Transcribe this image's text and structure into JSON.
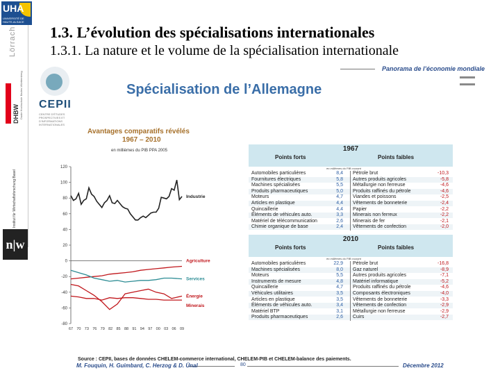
{
  "sidebar": {
    "uha_logo_text": "UHA",
    "uha_caption": "UNIVERSITÉ DE HAUTE-ALSACE",
    "campus_name": "Lörrach",
    "dhbw_name": "DHBW",
    "dhbw_sub": "Duale Hochschule Baden-Württemberg",
    "institute_name": "Institut für Wirtschaftsforschung Basel",
    "nw_logo": "n|w"
  },
  "slide": {
    "title": "1.3. L’évolution des spécialisations internationales",
    "subtitle": "1.3.1. La nature et le volume de la spécialisation internationale"
  },
  "embedded": {
    "panorama": "Panorama de l’économie mondiale",
    "cepii_name": "CEPII",
    "cepii_sub": "CENTRE D'ÉTUDES PROSPECTIVES ET D'INFORMATIONS INTERNATIONALES",
    "heading": "Spécialisation de l’Allemagne",
    "chart_title": "Avantages comparatifs révélés",
    "chart_years": "1967 – 2010",
    "chart_unit": "en millièmes du PIB PPA 2005",
    "source": "Source : CEPII, bases de données CHELEM-commerce international, CHELEM-PIB et CHELEM-balance des paiements.",
    "authors": "M. Fouquin, H. Guimbard, C. Herzog & D. Ünal",
    "page_no": "80",
    "date": "Décembre 2012"
  },
  "chart_data": {
    "type": "line",
    "title": "Avantages comparatifs révélés",
    "subtitle": "1967 – 2010",
    "ylabel": "en millièmes du PIB PPA 2005",
    "ylim": [
      -80,
      120
    ],
    "yticks": [
      120,
      100,
      80,
      60,
      40,
      20,
      0,
      -20,
      -40,
      -60,
      -80
    ],
    "xticks": [
      "67",
      "70",
      "73",
      "76",
      "79",
      "82",
      "85",
      "88",
      "91",
      "94",
      "97",
      "00",
      "03",
      "06",
      "09"
    ],
    "grid": false,
    "series": [
      {
        "name": "Industrie",
        "color": "#222222",
        "x": [
          1967,
          1968,
          1969,
          1970,
          1971,
          1972,
          1973,
          1974,
          1975,
          1976,
          1977,
          1978,
          1979,
          1980,
          1981,
          1982,
          1983,
          1984,
          1985,
          1986,
          1987,
          1988,
          1989,
          1990,
          1991,
          1992,
          1993,
          1994,
          1995,
          1996,
          1997,
          1998,
          1999,
          2000,
          2001,
          2002,
          2003,
          2004,
          2005,
          2006,
          2007,
          2008,
          2009,
          2010
        ],
        "values": [
          83,
          77,
          79,
          86,
          72,
          77,
          79,
          93,
          85,
          82,
          76,
          72,
          68,
          74,
          77,
          83,
          74,
          73,
          77,
          73,
          69,
          67,
          66,
          60,
          56,
          52,
          52,
          55,
          57,
          55,
          58,
          61,
          62,
          62,
          67,
          81,
          80,
          79,
          82,
          92,
          90,
          103,
          78,
          82
        ]
      },
      {
        "name": "Agriculture",
        "color": "#c0161b",
        "x": [
          1967,
          1970,
          1973,
          1976,
          1979,
          1982,
          1985,
          1988,
          1991,
          1994,
          1997,
          2000,
          2003,
          2006,
          2010
        ],
        "values": [
          -23,
          -22,
          -21,
          -20,
          -19,
          -17,
          -16,
          -15,
          -14,
          -12,
          -11,
          -10,
          -9,
          -8,
          -7
        ]
      },
      {
        "name": "Services",
        "color": "#2c8c94",
        "x": [
          1967,
          1970,
          1973,
          1976,
          1979,
          1982,
          1985,
          1988,
          1991,
          1994,
          1997,
          2000,
          2003,
          2006,
          2010
        ],
        "values": [
          -12,
          -15,
          -18,
          -22,
          -24,
          -26,
          -25,
          -27,
          -26,
          -25,
          -25,
          -24,
          -22,
          -22,
          -23
        ]
      },
      {
        "name": "Énergie",
        "color": "#c0161b",
        "x": [
          1967,
          1970,
          1973,
          1976,
          1979,
          1982,
          1985,
          1988,
          1991,
          1994,
          1997,
          2000,
          2003,
          2006,
          2010
        ],
        "values": [
          -30,
          -32,
          -38,
          -44,
          -52,
          -62,
          -55,
          -42,
          -40,
          -38,
          -36,
          -40,
          -42,
          -48,
          -45
        ]
      },
      {
        "name": "Minerais",
        "color": "#c0161b",
        "x": [
          1967,
          1970,
          1973,
          1976,
          1979,
          1982,
          1985,
          1988,
          1991,
          1994,
          1997,
          2000,
          2003,
          2006,
          2010
        ],
        "values": [
          -45,
          -46,
          -48,
          -48,
          -50,
          -47,
          -48,
          -47,
          -47,
          -48,
          -49,
          -49,
          -50,
          -50,
          -50
        ]
      }
    ]
  },
  "table": {
    "head_strong": "Points forts",
    "head_weak": "Points faibles",
    "unit": "en millièmes du PIB courant",
    "blocks": [
      {
        "year": "1967",
        "rows": [
          {
            "pl": "Automobiles particulières",
            "pv": "8,4",
            "nl": "Pétrole brut",
            "nv": "-10,3"
          },
          {
            "pl": "Fournitures électriques",
            "pv": "5,8",
            "nl": "Autres produits agricoles",
            "nv": "-5,8"
          },
          {
            "pl": "Machines spécialisées",
            "pv": "5,5",
            "nl": "Métallurgie non ferreuse",
            "nv": "-4,6"
          },
          {
            "pl": "Produits pharmaceutiques",
            "pv": "5,0",
            "nl": "Produits raffinés du pétrole",
            "nv": "-4,6"
          },
          {
            "pl": "Moteurs",
            "pv": "4,7",
            "nl": "Viandes et poissons",
            "nv": "-2,5"
          },
          {
            "pl": "Articles en plastique",
            "pv": "4,4",
            "nl": "Vêtements de bonneterie",
            "nv": "-2,4"
          },
          {
            "pl": "Quincaillerie",
            "pv": "4,4",
            "nl": "Papier",
            "nv": "-2,2"
          },
          {
            "pl": "Éléments de véhicules auto.",
            "pv": "3,3",
            "nl": "Minerais non ferreux",
            "nv": "-2,2"
          },
          {
            "pl": "Matériel de télécommunication",
            "pv": "2,6",
            "nl": "Minerais de fer",
            "nv": "-2,1"
          },
          {
            "pl": "Chimie organique de base",
            "pv": "2,4",
            "nl": "Vêtements de confection",
            "nv": "-2,0"
          }
        ]
      },
      {
        "year": "2010",
        "rows": [
          {
            "pl": "Automobiles particulières",
            "pv": "22,9",
            "nl": "Pétrole brut",
            "nv": "-16,8"
          },
          {
            "pl": "Machines spécialisées",
            "pv": "8,0",
            "nl": "Gaz naturel",
            "nv": "-8,9"
          },
          {
            "pl": "Moteurs",
            "pv": "5,5",
            "nl": "Autres produits agricoles",
            "nv": "-7,1"
          },
          {
            "pl": "Instruments de mesure",
            "pv": "4,8",
            "nl": "Matériel informatique",
            "nv": "-5,2"
          },
          {
            "pl": "Quincaillerie",
            "pv": "4,7",
            "nl": "Produits raffinés du pétrole",
            "nv": "-4,6"
          },
          {
            "pl": "Véhicules utilitaires",
            "pv": "3,5",
            "nl": "Composants électroniques",
            "nv": "-4,0"
          },
          {
            "pl": "Articles en plastique",
            "pv": "3,5",
            "nl": "Vêtements de bonneterie",
            "nv": "-3,3"
          },
          {
            "pl": "Éléments de véhicules auto.",
            "pv": "3,4",
            "nl": "Vêtements de confection",
            "nv": "-2,9"
          },
          {
            "pl": "Matériel BTP",
            "pv": "3,1",
            "nl": "Métallurgie non ferreuse",
            "nv": "-2,9"
          },
          {
            "pl": "Produits pharmaceutiques",
            "pv": "2,6",
            "nl": "Cuirs",
            "nv": "-2,7"
          }
        ]
      }
    ]
  }
}
